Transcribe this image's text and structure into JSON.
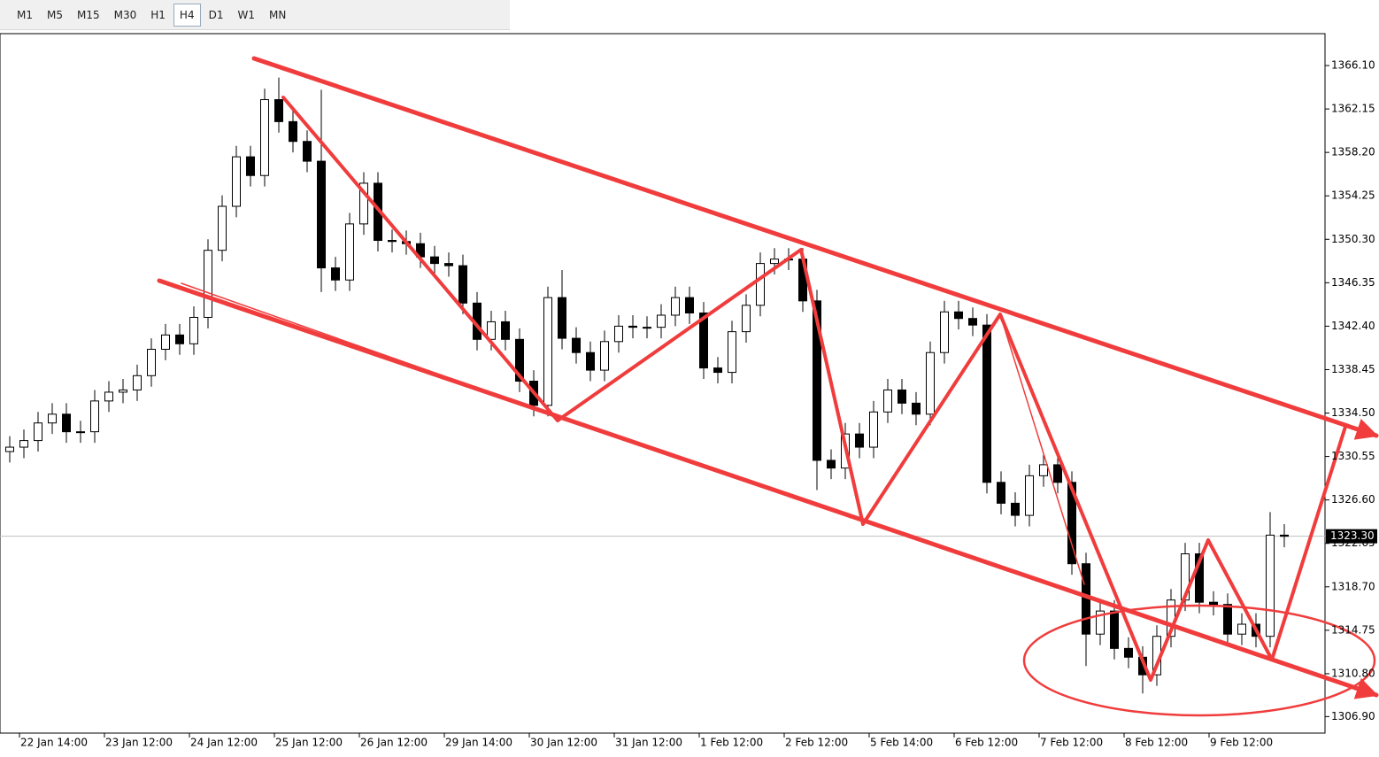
{
  "toolbar": {
    "timeframes": [
      "M1",
      "M5",
      "M15",
      "M30",
      "H1",
      "H4",
      "D1",
      "W1",
      "MN"
    ],
    "active": "H4"
  },
  "chart_data": {
    "type": "candlestick",
    "categories": [
      null,
      "22 Jan 14:00",
      null,
      null,
      null,
      null,
      null,
      "23 Jan 12:00",
      null,
      null,
      null,
      null,
      null,
      "24 Jan 12:00",
      null,
      null,
      null,
      null,
      null,
      "25 Jan 12:00",
      null,
      null,
      null,
      null,
      null,
      "26 Jan 12:00",
      null,
      null,
      null,
      null,
      null,
      "29 Jan 14:00",
      null,
      null,
      null,
      null,
      null,
      "30 Jan 12:00",
      null,
      null,
      null,
      null,
      null,
      "31 Jan 12:00",
      null,
      null,
      null,
      null,
      null,
      "1 Feb 12:00",
      null,
      null,
      null,
      null,
      null,
      "2 Feb 12:00",
      null,
      null,
      null,
      null,
      null,
      "5 Feb 14:00",
      null,
      null,
      null,
      null,
      null,
      "6 Feb 12:00",
      null,
      null,
      null,
      null,
      null,
      "7 Feb 12:00",
      null,
      null,
      null,
      null,
      null,
      "8 Feb 12:00",
      null,
      null,
      null,
      null,
      null,
      "9 Feb 12:00",
      null,
      null,
      null,
      null,
      null
    ],
    "open": [
      1331.0,
      1331.4,
      1332.0,
      1333.6,
      1334.4,
      1332.8,
      1332.8,
      1335.6,
      1336.4,
      1336.6,
      1337.9,
      1340.3,
      1341.6,
      1340.8,
      1343.2,
      1349.3,
      1353.3,
      1357.8,
      1356.1,
      1363.0,
      1361.0,
      1359.2,
      1357.4,
      1347.7,
      1346.6,
      1351.7,
      1355.4,
      1350.2,
      1350.1,
      1349.9,
      1348.7,
      1348.1,
      1347.9,
      1344.5,
      1341.2,
      1342.8,
      1341.2,
      1337.4,
      1335.2,
      1345.0,
      1341.3,
      1340.0,
      1338.4,
      1341.0,
      1342.4,
      1342.3,
      1342.3,
      1343.4,
      1345.0,
      1343.6,
      1338.6,
      1338.2,
      1341.9,
      1344.3,
      1348.1,
      1348.5,
      1348.5,
      1344.7,
      1330.2,
      1329.5,
      1332.6,
      1331.4,
      1334.6,
      1336.6,
      1335.4,
      1334.4,
      1340.0,
      1343.7,
      1343.1,
      1342.5,
      1328.2,
      1326.3,
      1325.2,
      1328.8,
      1329.8,
      1328.2,
      1320.8,
      1314.4,
      1316.5,
      1313.1,
      1312.3,
      1310.7,
      1314.2,
      1317.5,
      1321.7,
      1317.3,
      1317.1,
      1314.4,
      1315.3,
      1314.2,
      1323.4
    ],
    "high": [
      1332.4,
      1333.0,
      1334.6,
      1335.4,
      1335.4,
      1333.8,
      1336.6,
      1337.4,
      1337.6,
      1338.9,
      1341.3,
      1342.6,
      1342.6,
      1344.2,
      1350.3,
      1354.3,
      1358.8,
      1358.8,
      1364.0,
      1365.0,
      1362.0,
      1360.2,
      1363.9,
      1348.7,
      1352.7,
      1356.4,
      1356.4,
      1351.2,
      1351.1,
      1350.9,
      1349.7,
      1349.1,
      1348.9,
      1345.5,
      1343.8,
      1343.8,
      1342.2,
      1338.4,
      1346.0,
      1347.5,
      1342.3,
      1341.0,
      1342.0,
      1343.4,
      1343.4,
      1343.3,
      1344.4,
      1346.0,
      1346.0,
      1344.6,
      1339.6,
      1342.9,
      1345.3,
      1349.1,
      1349.5,
      1349.5,
      1349.5,
      1345.7,
      1331.2,
      1333.6,
      1333.6,
      1335.6,
      1337.6,
      1337.6,
      1336.4,
      1341.0,
      1344.7,
      1344.7,
      1344.1,
      1343.5,
      1329.2,
      1327.3,
      1329.8,
      1330.8,
      1330.8,
      1329.2,
      1321.8,
      1317.5,
      1317.5,
      1314.1,
      1313.3,
      1315.2,
      1318.5,
      1322.7,
      1322.7,
      1318.3,
      1318.1,
      1316.3,
      1316.3,
      1325.5,
      1324.4
    ],
    "low": [
      1330.0,
      1330.4,
      1331.0,
      1332.6,
      1331.8,
      1331.8,
      1331.8,
      1334.6,
      1335.4,
      1335.6,
      1336.9,
      1339.3,
      1339.8,
      1339.8,
      1342.2,
      1348.3,
      1352.3,
      1355.1,
      1355.1,
      1360.0,
      1358.2,
      1356.4,
      1345.5,
      1345.6,
      1345.6,
      1350.7,
      1349.2,
      1349.1,
      1348.9,
      1347.7,
      1347.1,
      1346.9,
      1343.5,
      1340.2,
      1340.2,
      1340.2,
      1336.4,
      1334.2,
      1334.2,
      1340.3,
      1339.0,
      1337.4,
      1337.4,
      1340.0,
      1341.3,
      1341.3,
      1341.3,
      1342.4,
      1342.6,
      1337.6,
      1337.2,
      1337.2,
      1340.9,
      1343.3,
      1347.1,
      1347.5,
      1343.7,
      1327.5,
      1328.5,
      1328.5,
      1330.4,
      1330.4,
      1333.6,
      1334.4,
      1333.4,
      1333.4,
      1339.0,
      1342.1,
      1341.5,
      1327.2,
      1325.3,
      1324.2,
      1324.2,
      1327.8,
      1327.2,
      1319.8,
      1311.5,
      1313.4,
      1312.1,
      1311.3,
      1309.0,
      1309.7,
      1313.2,
      1316.5,
      1316.3,
      1316.1,
      1313.4,
      1313.4,
      1313.2,
      1313.2,
      1322.3
    ],
    "close": [
      1331.4,
      1332.0,
      1333.6,
      1334.4,
      1332.8,
      1332.8,
      1335.6,
      1336.4,
      1336.6,
      1337.9,
      1340.3,
      1341.6,
      1340.8,
      1343.2,
      1349.3,
      1353.3,
      1357.8,
      1356.1,
      1363.0,
      1361.0,
      1359.2,
      1357.4,
      1347.7,
      1346.6,
      1351.7,
      1355.4,
      1350.2,
      1350.1,
      1349.9,
      1348.7,
      1348.1,
      1347.9,
      1344.5,
      1341.2,
      1342.8,
      1341.2,
      1337.4,
      1335.2,
      1345.0,
      1341.3,
      1340.0,
      1338.4,
      1341.0,
      1342.4,
      1342.3,
      1342.3,
      1343.4,
      1345.0,
      1343.6,
      1338.6,
      1338.2,
      1341.9,
      1344.3,
      1348.1,
      1348.5,
      1348.5,
      1344.7,
      1330.2,
      1329.5,
      1332.6,
      1331.4,
      1334.6,
      1336.6,
      1335.4,
      1334.4,
      1340.0,
      1343.7,
      1343.1,
      1342.5,
      1328.2,
      1326.3,
      1325.2,
      1328.8,
      1329.8,
      1328.2,
      1320.8,
      1314.4,
      1316.5,
      1313.1,
      1312.3,
      1310.7,
      1314.2,
      1317.5,
      1321.7,
      1317.3,
      1317.1,
      1314.4,
      1315.3,
      1314.2,
      1323.4,
      1323.3
    ],
    "up_color": "#ffffff",
    "down_color": "#000000",
    "wick_color": "#000000",
    "ylim": [
      1305.4,
      1369.0
    ],
    "yticks": [
      {
        "value": 1366.1,
        "label": "1366.10"
      },
      {
        "value": 1362.15,
        "label": "1362.15"
      },
      {
        "value": 1358.2,
        "label": "1358.20"
      },
      {
        "value": 1354.25,
        "label": "1354.25"
      },
      {
        "value": 1350.3,
        "label": "1350.30"
      },
      {
        "value": 1346.35,
        "label": "1346.35"
      },
      {
        "value": 1342.4,
        "label": "1342.40"
      },
      {
        "value": 1338.45,
        "label": "1338.45"
      },
      {
        "value": 1334.5,
        "label": "1334.50"
      },
      {
        "value": 1330.55,
        "label": "1330.55"
      },
      {
        "value": 1326.6,
        "label": "1326.60"
      },
      {
        "value": 1322.65,
        "label": "1322.65"
      },
      {
        "value": 1318.7,
        "label": "1318.70"
      },
      {
        "value": 1314.75,
        "label": "1314.75"
      },
      {
        "value": 1310.8,
        "label": "1310.80"
      },
      {
        "value": 1306.9,
        "label": "1306.90"
      }
    ],
    "current_price": {
      "value": 1323.3,
      "label": "1323.30"
    }
  }
}
